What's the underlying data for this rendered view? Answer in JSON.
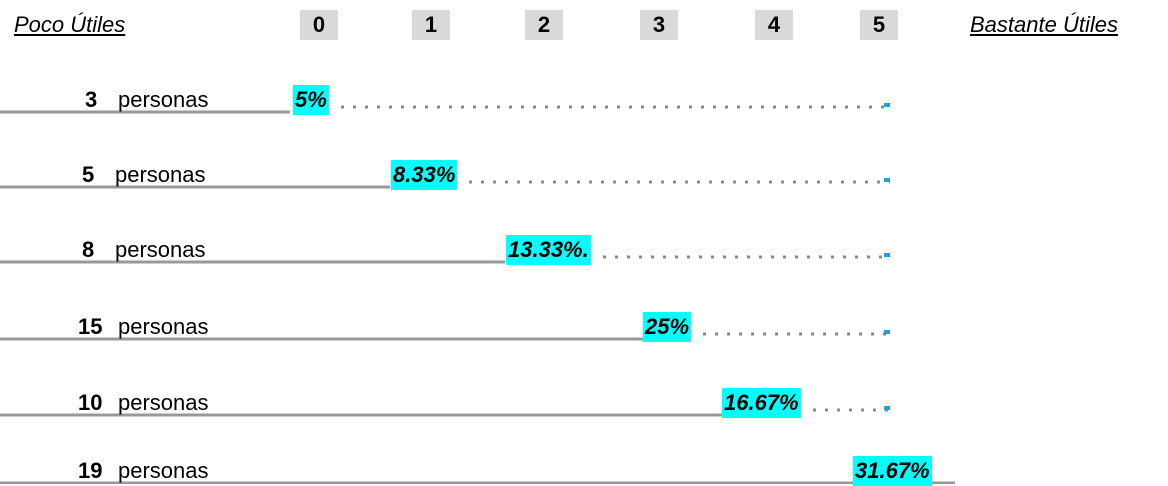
{
  "header": {
    "left": "Poco Útiles",
    "scale": [
      "0",
      "1",
      "2",
      "3",
      "4",
      "5"
    ],
    "right": "Bastante Útiles"
  },
  "rows": [
    {
      "count": "3",
      "unit": "personas",
      "percent": "5%"
    },
    {
      "count": "5",
      "unit": "personas",
      "percent": "8.33%"
    },
    {
      "count": "8",
      "unit": "personas",
      "percent": "13.33%."
    },
    {
      "count": "15",
      "unit": "personas",
      "percent": "25%"
    },
    {
      "count": "10",
      "unit": "personas",
      "percent": "16.67%"
    },
    {
      "count": "19",
      "unit": "personas",
      "percent": "31.67%"
    }
  ]
}
